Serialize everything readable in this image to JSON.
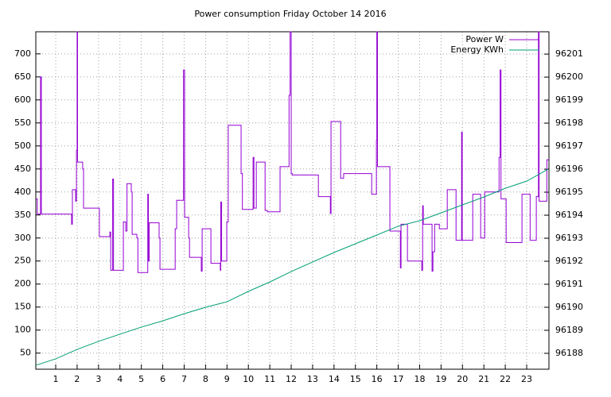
{
  "chart_data": {
    "type": "line",
    "title": "Power consumption Friday October 14 2016",
    "xlim": [
      0.07,
      24.04
    ],
    "xticks": [
      1,
      2,
      3,
      4,
      5,
      6,
      7,
      8,
      9,
      10,
      11,
      12,
      13,
      14,
      15,
      16,
      17,
      18,
      19,
      20,
      21,
      22,
      23
    ],
    "ylim": [
      15,
      748
    ],
    "yticks": [
      50,
      100,
      150,
      200,
      250,
      300,
      350,
      400,
      450,
      500,
      550,
      600,
      650,
      700
    ],
    "y2lim": [
      96187.31,
      96201.97
    ],
    "y2ticks": [
      96188,
      96189,
      96190,
      96191,
      96192,
      96193,
      96194,
      96195,
      96196,
      96197,
      96198,
      96199,
      96200,
      96201
    ],
    "grid": true,
    "legend": "top-right",
    "series": [
      {
        "name": "Power W",
        "color": "#9400d3",
        "x": [
          0.07,
          0.14,
          0.14,
          0.29,
          0.29,
          0.33,
          0.33,
          1.74,
          1.74,
          1.78,
          1.78,
          1.93,
          1.93,
          1.97,
          1.97,
          2.0,
          2.0,
          2.02,
          2.02,
          2.26,
          2.26,
          2.3,
          2.3,
          3.04,
          3.04,
          3.53,
          3.53,
          3.57,
          3.57,
          3.66,
          3.66,
          3.7,
          3.7,
          4.16,
          4.16,
          4.27,
          4.27,
          4.33,
          4.33,
          4.53,
          4.53,
          4.57,
          4.57,
          4.79,
          4.79,
          4.84,
          4.84,
          5.3,
          5.3,
          5.33,
          5.33,
          5.37,
          5.37,
          5.83,
          5.83,
          5.87,
          5.87,
          6.58,
          6.58,
          6.65,
          6.65,
          6.97,
          6.97,
          7.02,
          7.02,
          7.21,
          7.21,
          7.25,
          7.25,
          7.8,
          7.8,
          7.84,
          7.84,
          8.25,
          8.25,
          8.69,
          8.69,
          8.71,
          8.71,
          8.75,
          8.75,
          8.99,
          8.99,
          9.06,
          9.06,
          9.66,
          9.66,
          9.72,
          9.72,
          10.22,
          10.22,
          10.26,
          10.26,
          10.37,
          10.37,
          10.78,
          10.78,
          10.89,
          10.89,
          11.48,
          11.48,
          11.9,
          11.9,
          11.95,
          11.95,
          12.0,
          12.0,
          12.05,
          12.05,
          13.27,
          13.27,
          13.83,
          13.83,
          13.86,
          13.86,
          14.31,
          14.31,
          14.45,
          14.45,
          15.76,
          15.76,
          15.98,
          15.98,
          16.0,
          16.0,
          16.03,
          16.03,
          16.61,
          16.61,
          17.1,
          17.1,
          17.13,
          17.13,
          17.43,
          17.43,
          18.1,
          18.1,
          18.14,
          18.14,
          18.17,
          18.17,
          18.58,
          18.58,
          18.62,
          18.62,
          18.7,
          18.7,
          18.92,
          18.92,
          19.29,
          19.29,
          19.7,
          19.7,
          19.96,
          19.96,
          19.99,
          19.99,
          20.48,
          20.48,
          20.85,
          20.85,
          21.04,
          21.04,
          21.71,
          21.71,
          21.76,
          21.76,
          21.8,
          21.8,
          22.04,
          22.04,
          22.78,
          22.78,
          23.16,
          23.16,
          23.45,
          23.45,
          23.55,
          23.55,
          23.58,
          23.58,
          23.94,
          23.94,
          24.04
        ],
        "values": [
          385,
          385,
          352,
          352,
          650,
          650,
          352,
          352,
          330,
          330,
          405,
          405,
          380,
          380,
          490,
          490,
          748,
          748,
          465,
          465,
          450,
          450,
          365,
          365,
          303,
          303,
          313,
          313,
          230,
          230,
          428,
          428,
          230,
          230,
          335,
          335,
          315,
          315,
          418,
          418,
          400,
          400,
          308,
          308,
          300,
          300,
          225,
          225,
          395,
          395,
          250,
          250,
          333,
          333,
          300,
          300,
          232,
          232,
          320,
          320,
          382,
          382,
          665,
          665,
          345,
          345,
          300,
          300,
          258,
          258,
          228,
          228,
          320,
          320,
          245,
          245,
          230,
          230,
          378,
          378,
          250,
          250,
          335,
          335,
          545,
          545,
          440,
          440,
          362,
          362,
          475,
          475,
          365,
          365,
          465,
          465,
          360,
          360,
          357,
          357,
          455,
          455,
          610,
          610,
          748,
          748,
          440,
          440,
          437,
          437,
          390,
          390,
          353,
          353,
          553,
          553,
          430,
          430,
          440,
          440,
          395,
          395,
          512,
          512,
          748,
          748,
          455,
          455,
          315,
          315,
          235,
          235,
          330,
          330,
          250,
          250,
          230,
          230,
          370,
          370,
          330,
          330,
          228,
          228,
          270,
          270,
          330,
          330,
          320,
          320,
          405,
          405,
          295,
          295,
          530,
          530,
          295,
          295,
          395,
          395,
          300,
          300,
          400,
          400,
          475,
          475,
          665,
          665,
          385,
          385,
          290,
          290,
          395,
          395,
          295,
          295,
          390,
          390,
          748,
          748,
          380,
          380,
          470,
          470
        ]
      },
      {
        "name": "Energy KWh",
        "color": "#009e73",
        "axis": "y2",
        "x": [
          0.07,
          1,
          2,
          3,
          4,
          5,
          6,
          7,
          8,
          9,
          10,
          11,
          12,
          13,
          14,
          15,
          16,
          17,
          18,
          19,
          20,
          21,
          22,
          23,
          24
        ],
        "values": [
          96187.48,
          96187.76,
          96188.17,
          96188.52,
          96188.83,
          96189.14,
          96189.41,
          96189.72,
          96190.0,
          96190.24,
          96190.69,
          96191.1,
          96191.55,
          96191.97,
          96192.38,
          96192.76,
          96193.14,
          96193.52,
          96193.76,
          96194.1,
          96194.45,
          96194.79,
          96195.17,
          96195.48,
          96196.0
        ]
      }
    ]
  }
}
